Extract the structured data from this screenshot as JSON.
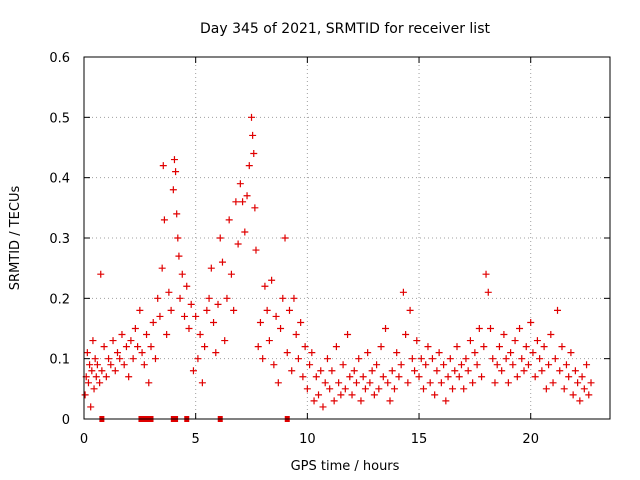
{
  "chart_data": {
    "type": "scatter",
    "title": "Day 345 of 2021, SRMTID for receiver list",
    "xlabel": "GPS time / hours",
    "ylabel": "SRMTID / TECUs",
    "xlim": [
      0,
      23.55
    ],
    "ylim": [
      0,
      0.6
    ],
    "xticks": [
      0,
      5,
      10,
      15,
      20
    ],
    "xtick_labels": [
      "0",
      "5",
      "10",
      "15",
      "20"
    ],
    "yticks": [
      0,
      0.1,
      0.2,
      0.3,
      0.4,
      0.5,
      0.6
    ],
    "ytick_labels": [
      "0",
      "0.1",
      "0.2",
      "0.3",
      "0.4",
      "0.5",
      "0.6"
    ],
    "grid": true,
    "marker": "plus",
    "color": "#e00000",
    "series": [
      {
        "name": "SRMTID",
        "points": [
          [
            0.05,
            0.04
          ],
          [
            0.1,
            0.07
          ],
          [
            0.15,
            0.11
          ],
          [
            0.2,
            0.06
          ],
          [
            0.25,
            0.09
          ],
          [
            0.3,
            0.02
          ],
          [
            0.35,
            0.08
          ],
          [
            0.4,
            0.13
          ],
          [
            0.45,
            0.05
          ],
          [
            0.5,
            0.1
          ],
          [
            0.55,
            0.07
          ],
          [
            0.6,
            0.09
          ],
          [
            0.7,
            0.06
          ],
          [
            0.75,
            0.24
          ],
          [
            0.8,
            0.08
          ],
          [
            0.9,
            0.12
          ],
          [
            1.0,
            0.07
          ],
          [
            1.1,
            0.1
          ],
          [
            1.2,
            0.09
          ],
          [
            1.3,
            0.13
          ],
          [
            1.4,
            0.08
          ],
          [
            1.5,
            0.11
          ],
          [
            1.6,
            0.1
          ],
          [
            1.7,
            0.14
          ],
          [
            1.8,
            0.09
          ],
          [
            1.9,
            0.12
          ],
          [
            2.0,
            0.07
          ],
          [
            2.1,
            0.13
          ],
          [
            2.2,
            0.1
          ],
          [
            2.3,
            0.15
          ],
          [
            2.4,
            0.12
          ],
          [
            2.5,
            0.18
          ],
          [
            2.6,
            0.11
          ],
          [
            2.7,
            0.09
          ],
          [
            2.8,
            0.14
          ],
          [
            2.9,
            0.06
          ],
          [
            3.0,
            0.12
          ],
          [
            3.1,
            0.16
          ],
          [
            3.2,
            0.1
          ],
          [
            3.3,
            0.2
          ],
          [
            3.4,
            0.17
          ],
          [
            3.5,
            0.25
          ],
          [
            3.55,
            0.42
          ],
          [
            3.6,
            0.33
          ],
          [
            3.7,
            0.14
          ],
          [
            3.8,
            0.21
          ],
          [
            3.9,
            0.18
          ],
          [
            4.0,
            0.38
          ],
          [
            4.05,
            0.43
          ],
          [
            4.1,
            0.41
          ],
          [
            4.15,
            0.34
          ],
          [
            4.2,
            0.3
          ],
          [
            4.25,
            0.27
          ],
          [
            4.3,
            0.2
          ],
          [
            4.4,
            0.24
          ],
          [
            4.5,
            0.17
          ],
          [
            4.6,
            0.22
          ],
          [
            4.7,
            0.15
          ],
          [
            4.8,
            0.19
          ],
          [
            4.9,
            0.08
          ],
          [
            5.0,
            0.17
          ],
          [
            5.1,
            0.1
          ],
          [
            5.2,
            0.14
          ],
          [
            5.3,
            0.06
          ],
          [
            5.4,
            0.12
          ],
          [
            5.5,
            0.18
          ],
          [
            5.6,
            0.2
          ],
          [
            5.7,
            0.25
          ],
          [
            5.8,
            0.16
          ],
          [
            5.9,
            0.11
          ],
          [
            6.0,
            0.19
          ],
          [
            6.1,
            0.3
          ],
          [
            6.2,
            0.26
          ],
          [
            6.3,
            0.13
          ],
          [
            6.4,
            0.2
          ],
          [
            6.5,
            0.33
          ],
          [
            6.6,
            0.24
          ],
          [
            6.7,
            0.18
          ],
          [
            6.8,
            0.36
          ],
          [
            6.9,
            0.29
          ],
          [
            7.0,
            0.39
          ],
          [
            7.1,
            0.36
          ],
          [
            7.2,
            0.31
          ],
          [
            7.3,
            0.37
          ],
          [
            7.4,
            0.42
          ],
          [
            7.5,
            0.5
          ],
          [
            7.55,
            0.47
          ],
          [
            7.6,
            0.44
          ],
          [
            7.65,
            0.35
          ],
          [
            7.7,
            0.28
          ],
          [
            7.8,
            0.12
          ],
          [
            7.9,
            0.16
          ],
          [
            8.0,
            0.1
          ],
          [
            8.1,
            0.22
          ],
          [
            8.2,
            0.18
          ],
          [
            8.3,
            0.13
          ],
          [
            8.4,
            0.23
          ],
          [
            8.5,
            0.09
          ],
          [
            8.6,
            0.17
          ],
          [
            8.7,
            0.06
          ],
          [
            8.8,
            0.15
          ],
          [
            8.9,
            0.2
          ],
          [
            9.0,
            0.3
          ],
          [
            9.1,
            0.11
          ],
          [
            9.2,
            0.18
          ],
          [
            9.3,
            0.08
          ],
          [
            9.4,
            0.2
          ],
          [
            9.5,
            0.14
          ],
          [
            9.6,
            0.1
          ],
          [
            9.7,
            0.16
          ],
          [
            9.8,
            0.07
          ],
          [
            9.9,
            0.12
          ],
          [
            10.0,
            0.05
          ],
          [
            10.1,
            0.09
          ],
          [
            10.2,
            0.11
          ],
          [
            10.3,
            0.03
          ],
          [
            10.4,
            0.07
          ],
          [
            10.5,
            0.04
          ],
          [
            10.6,
            0.08
          ],
          [
            10.7,
            0.02
          ],
          [
            10.8,
            0.06
          ],
          [
            10.9,
            0.1
          ],
          [
            11.0,
            0.05
          ],
          [
            11.1,
            0.08
          ],
          [
            11.2,
            0.03
          ],
          [
            11.3,
            0.12
          ],
          [
            11.4,
            0.06
          ],
          [
            11.5,
            0.04
          ],
          [
            11.6,
            0.09
          ],
          [
            11.7,
            0.05
          ],
          [
            11.8,
            0.14
          ],
          [
            11.9,
            0.07
          ],
          [
            12.0,
            0.04
          ],
          [
            12.1,
            0.08
          ],
          [
            12.2,
            0.06
          ],
          [
            12.3,
            0.1
          ],
          [
            12.4,
            0.03
          ],
          [
            12.5,
            0.07
          ],
          [
            12.6,
            0.05
          ],
          [
            12.7,
            0.11
          ],
          [
            12.8,
            0.06
          ],
          [
            12.9,
            0.08
          ],
          [
            13.0,
            0.04
          ],
          [
            13.1,
            0.09
          ],
          [
            13.2,
            0.05
          ],
          [
            13.3,
            0.12
          ],
          [
            13.4,
            0.07
          ],
          [
            13.5,
            0.15
          ],
          [
            13.6,
            0.06
          ],
          [
            13.7,
            0.03
          ],
          [
            13.8,
            0.08
          ],
          [
            13.9,
            0.05
          ],
          [
            14.0,
            0.11
          ],
          [
            14.1,
            0.07
          ],
          [
            14.2,
            0.09
          ],
          [
            14.3,
            0.21
          ],
          [
            14.4,
            0.14
          ],
          [
            14.5,
            0.06
          ],
          [
            14.6,
            0.18
          ],
          [
            14.7,
            0.1
          ],
          [
            14.8,
            0.08
          ],
          [
            14.9,
            0.13
          ],
          [
            15.0,
            0.07
          ],
          [
            15.1,
            0.1
          ],
          [
            15.2,
            0.05
          ],
          [
            15.3,
            0.09
          ],
          [
            15.4,
            0.12
          ],
          [
            15.5,
            0.06
          ],
          [
            15.6,
            0.1
          ],
          [
            15.7,
            0.04
          ],
          [
            15.8,
            0.08
          ],
          [
            15.9,
            0.11
          ],
          [
            16.0,
            0.06
          ],
          [
            16.1,
            0.09
          ],
          [
            16.2,
            0.03
          ],
          [
            16.3,
            0.07
          ],
          [
            16.4,
            0.1
          ],
          [
            16.5,
            0.05
          ],
          [
            16.6,
            0.08
          ],
          [
            16.7,
            0.12
          ],
          [
            16.8,
            0.07
          ],
          [
            16.9,
            0.09
          ],
          [
            17.0,
            0.05
          ],
          [
            17.1,
            0.1
          ],
          [
            17.2,
            0.08
          ],
          [
            17.3,
            0.13
          ],
          [
            17.4,
            0.06
          ],
          [
            17.5,
            0.11
          ],
          [
            17.6,
            0.09
          ],
          [
            17.7,
            0.15
          ],
          [
            17.8,
            0.07
          ],
          [
            17.9,
            0.12
          ],
          [
            18.0,
            0.24
          ],
          [
            18.1,
            0.21
          ],
          [
            18.2,
            0.15
          ],
          [
            18.3,
            0.1
          ],
          [
            18.4,
            0.06
          ],
          [
            18.5,
            0.09
          ],
          [
            18.6,
            0.12
          ],
          [
            18.7,
            0.08
          ],
          [
            18.8,
            0.14
          ],
          [
            18.9,
            0.1
          ],
          [
            19.0,
            0.06
          ],
          [
            19.1,
            0.11
          ],
          [
            19.2,
            0.09
          ],
          [
            19.3,
            0.13
          ],
          [
            19.4,
            0.07
          ],
          [
            19.5,
            0.15
          ],
          [
            19.6,
            0.1
          ],
          [
            19.7,
            0.08
          ],
          [
            19.8,
            0.12
          ],
          [
            19.9,
            0.09
          ],
          [
            20.0,
            0.16
          ],
          [
            20.1,
            0.11
          ],
          [
            20.2,
            0.07
          ],
          [
            20.3,
            0.13
          ],
          [
            20.4,
            0.1
          ],
          [
            20.5,
            0.08
          ],
          [
            20.6,
            0.12
          ],
          [
            20.7,
            0.05
          ],
          [
            20.8,
            0.09
          ],
          [
            20.9,
            0.14
          ],
          [
            21.0,
            0.06
          ],
          [
            21.1,
            0.1
          ],
          [
            21.2,
            0.18
          ],
          [
            21.3,
            0.08
          ],
          [
            21.4,
            0.12
          ],
          [
            21.5,
            0.05
          ],
          [
            21.6,
            0.09
          ],
          [
            21.7,
            0.07
          ],
          [
            21.8,
            0.11
          ],
          [
            21.9,
            0.04
          ],
          [
            22.0,
            0.08
          ],
          [
            22.1,
            0.06
          ],
          [
            22.2,
            0.03
          ],
          [
            22.3,
            0.07
          ],
          [
            22.4,
            0.05
          ],
          [
            22.5,
            0.09
          ],
          [
            22.6,
            0.04
          ],
          [
            22.7,
            0.06
          ]
        ],
        "zero_points": [
          0.8,
          2.55,
          2.75,
          2.9,
          3.0,
          4.0,
          4.1,
          4.6,
          6.1,
          9.1
        ]
      }
    ]
  }
}
